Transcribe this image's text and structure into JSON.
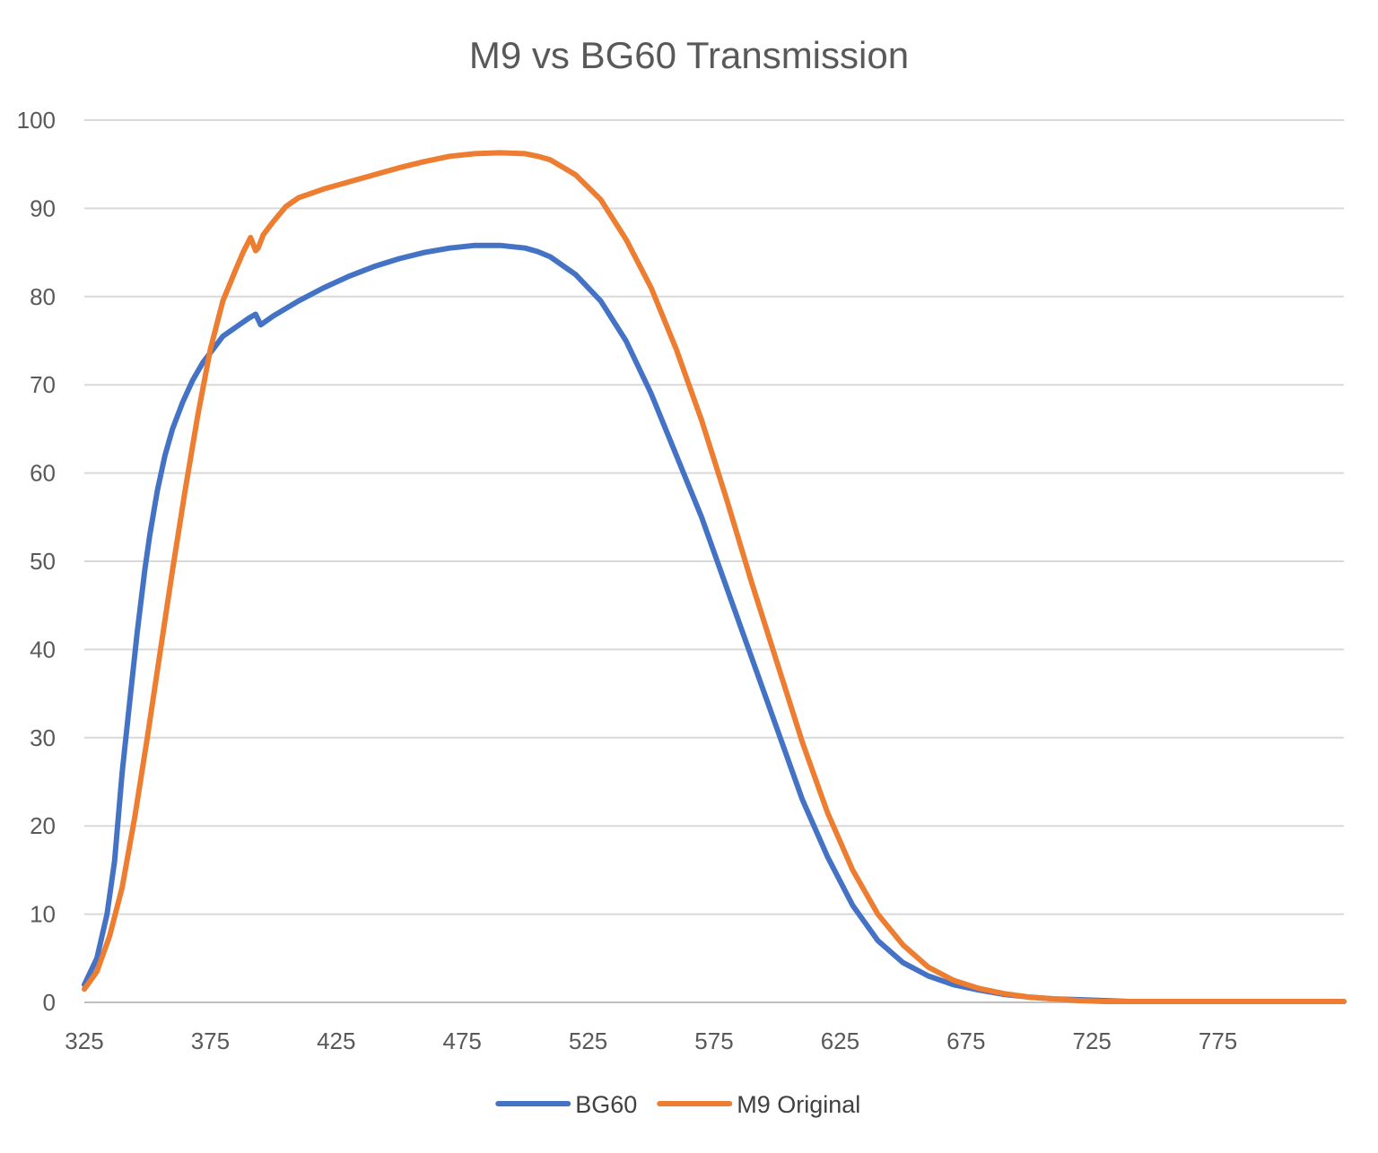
{
  "chart_data": {
    "type": "line",
    "title": "M9 vs BG60 Transmission",
    "xlabel": "",
    "ylabel": "",
    "xlim": [
      325,
      825
    ],
    "ylim": [
      0,
      100
    ],
    "x_ticks": [
      "325",
      "375",
      "425",
      "475",
      "525",
      "575",
      "625",
      "675",
      "725",
      "775"
    ],
    "y_ticks": [
      "0",
      "10",
      "20",
      "30",
      "40",
      "50",
      "60",
      "70",
      "80",
      "90",
      "100"
    ],
    "grid": "horizontal",
    "legend": "bottom",
    "series": [
      {
        "name": "BG60",
        "color": "#4472c4",
        "x": [
          325,
          330,
          334,
          337,
          340,
          343,
          346,
          349,
          351,
          354,
          357,
          360,
          364,
          368,
          372,
          376,
          380,
          385,
          390,
          393,
          395,
          396,
          400,
          410,
          420,
          430,
          440,
          450,
          460,
          470,
          480,
          490,
          500,
          505,
          510,
          520,
          530,
          540,
          550,
          560,
          570,
          580,
          590,
          600,
          610,
          620,
          630,
          640,
          650,
          660,
          670,
          680,
          690,
          700,
          710,
          720,
          730,
          740,
          750,
          760,
          770,
          780,
          790,
          800,
          810,
          825
        ],
        "values": [
          2,
          5,
          10,
          16,
          26,
          34,
          42,
          49,
          53,
          58,
          62,
          65,
          68,
          70.5,
          72.5,
          74,
          75.5,
          76.5,
          77.5,
          78,
          76.8,
          77,
          77.8,
          79.5,
          81,
          82.3,
          83.4,
          84.3,
          85,
          85.5,
          85.8,
          85.8,
          85.5,
          85.1,
          84.5,
          82.5,
          79.5,
          75,
          69,
          62,
          55,
          47,
          39,
          31,
          23,
          16.5,
          11,
          7,
          4.5,
          3,
          2,
          1.4,
          0.9,
          0.6,
          0.4,
          0.3,
          0.2,
          0.1,
          0.1,
          0.1,
          0.1,
          0.1,
          0.1,
          0.1,
          0.1,
          0.1
        ]
      },
      {
        "name": "M9 Original",
        "color": "#ed7d31",
        "x": [
          325,
          330,
          335,
          340,
          345,
          350,
          355,
          360,
          365,
          370,
          375,
          380,
          385,
          388,
          391,
          393,
          394,
          396,
          400,
          405,
          410,
          420,
          430,
          440,
          450,
          460,
          470,
          480,
          490,
          500,
          505,
          510,
          520,
          530,
          540,
          550,
          560,
          570,
          580,
          590,
          600,
          610,
          620,
          630,
          640,
          650,
          660,
          670,
          680,
          690,
          700,
          710,
          720,
          730,
          740,
          750,
          760,
          770,
          780,
          790,
          800,
          810,
          825
        ],
        "values": [
          1.5,
          3.5,
          7.5,
          13,
          21,
          30,
          39.5,
          49,
          58,
          66.5,
          74,
          79.5,
          83,
          85,
          86.7,
          85.2,
          85.5,
          87,
          88.5,
          90.2,
          91.2,
          92.2,
          93,
          93.8,
          94.6,
          95.3,
          95.9,
          96.2,
          96.3,
          96.2,
          95.9,
          95.5,
          93.8,
          91,
          86.5,
          81,
          74,
          66,
          57,
          47.5,
          38.5,
          29.5,
          21.5,
          15,
          10,
          6.5,
          4,
          2.5,
          1.6,
          1,
          0.6,
          0.4,
          0.2,
          0.1,
          0.1,
          0.1,
          0.1,
          0.1,
          0.1,
          0.1,
          0.1,
          0.1,
          0.1
        ]
      }
    ]
  }
}
